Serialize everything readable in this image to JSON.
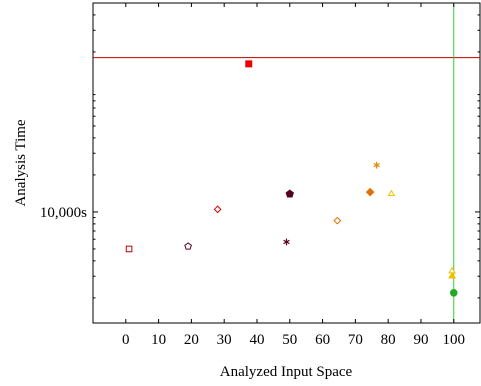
{
  "chart_data": {
    "type": "scatter",
    "xlabel": "Analyzed Input Space",
    "ylabel": "Analysis Time",
    "xlim": [
      -10,
      108
    ],
    "x_ticks": [
      0,
      10,
      20,
      30,
      40,
      50,
      60,
      70,
      80,
      90,
      100
    ],
    "x_tick_labels": [
      "0",
      "10",
      "20",
      "30",
      "40",
      "50",
      "60",
      "70",
      "80",
      "90",
      "100"
    ],
    "y_scale": "log",
    "ylim": [
      1250,
      500000
    ],
    "y_ticks_labeled": [
      10000
    ],
    "y_tick_labels": [
      "10,000s"
    ],
    "y_ticks_minor": [
      2000,
      3000,
      4000,
      5000,
      6000,
      7000,
      8000,
      9000,
      20000,
      30000,
      40000,
      50000,
      60000,
      70000,
      80000,
      90000,
      200000,
      300000,
      400000
    ],
    "reference_lines": [
      {
        "orientation": "horizontal",
        "y": 180000,
        "color": "#c00000"
      },
      {
        "orientation": "vertical",
        "x": 100,
        "color": "#33cc33"
      }
    ],
    "points": [
      {
        "x": 1,
        "y": 5000,
        "marker": "square-open",
        "color": "#c00000"
      },
      {
        "x": 19,
        "y": 5250,
        "marker": "pentagon-open",
        "color": "#5a0026"
      },
      {
        "x": 28,
        "y": 10500,
        "marker": "diamond-open",
        "color": "#dd0000"
      },
      {
        "x": 37.5,
        "y": 160000,
        "marker": "square-filled",
        "color": "#ee0000"
      },
      {
        "x": 49,
        "y": 5700,
        "marker": "asterisk",
        "color": "#550022"
      },
      {
        "x": 50,
        "y": 14000,
        "marker": "pentagon-filled",
        "color": "#550022"
      },
      {
        "x": 64.5,
        "y": 8500,
        "marker": "diamond-open",
        "color": "#e07000"
      },
      {
        "x": 74.5,
        "y": 14500,
        "marker": "diamond-filled",
        "color": "#e07000"
      },
      {
        "x": 76.5,
        "y": 24000,
        "marker": "asterisk",
        "color": "#e08800"
      },
      {
        "x": 81,
        "y": 14000,
        "marker": "triangle-open",
        "color": "#f0c000"
      },
      {
        "x": 99.5,
        "y": 3300,
        "marker": "triangle-open",
        "color": "#f0c000"
      },
      {
        "x": 99.5,
        "y": 3000,
        "marker": "triangle-filled",
        "color": "#f0c000"
      },
      {
        "x": 100,
        "y": 2200,
        "marker": "circle-filled",
        "color": "#22aa22"
      }
    ]
  }
}
